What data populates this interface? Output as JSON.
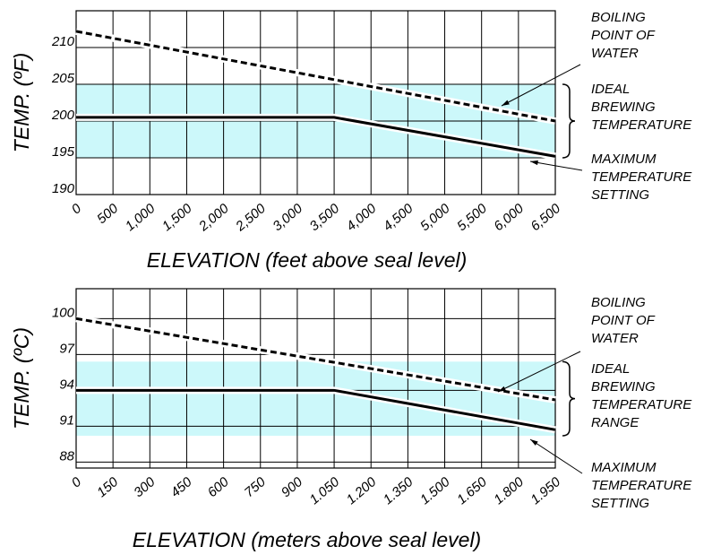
{
  "chart_data": [
    {
      "type": "line",
      "xlabel": "ELEVATION (feet above seal level)",
      "ylabel": "TEMP. (ºF)",
      "xlim": [
        0,
        6500
      ],
      "xticks": [
        0,
        500,
        {
          "value": 1000,
          "label": "1,000"
        },
        {
          "value": 1500,
          "label": "1,500"
        },
        {
          "value": 2000,
          "label": "2,000"
        },
        {
          "value": 2500,
          "label": "2,500"
        },
        {
          "value": 3000,
          "label": "3,000"
        },
        {
          "value": 3500,
          "label": "3,500"
        },
        {
          "value": 4000,
          "label": "4,000"
        },
        {
          "value": 4500,
          "label": "4,500"
        },
        {
          "value": 5000,
          "label": "5,000"
        },
        {
          "value": 5500,
          "label": "5,500"
        },
        {
          "value": 6000,
          "label": "6,000"
        },
        {
          "value": 6500,
          "label": "6,500"
        }
      ],
      "ylim": [
        190,
        215
      ],
      "yticks": [
        190,
        195,
        200,
        205,
        210
      ],
      "grid": true,
      "band": [
        195,
        205
      ],
      "band_color": "#ccf8fa",
      "series": [
        {
          "name": "BOILING POINT OF WATER",
          "color": "#000000",
          "style": "dashed",
          "x": [
            0,
            6500
          ],
          "values": [
            212.2,
            200
          ]
        },
        {
          "name": "MAXIMUM TEMPERATURE SETTING",
          "color": "#000000",
          "style": "solid",
          "x": [
            0,
            3500,
            6500
          ],
          "values": [
            200.5,
            200.5,
            195.2
          ]
        }
      ],
      "annotations": [
        {
          "lines": [
            "BOILING",
            "POINT OF",
            "WATER"
          ]
        },
        {
          "lines": [
            "IDEAL",
            "BREWING",
            "TEMPERATURE"
          ]
        },
        {
          "lines": [
            "MAXIMUM",
            "TEMPERATURE",
            "SETTING"
          ]
        }
      ]
    },
    {
      "type": "line",
      "xlabel": "ELEVATION (meters above seal level)",
      "ylabel": "TEMP. (ºC)",
      "xlim": [
        0,
        1950
      ],
      "xticks": [
        0,
        150,
        300,
        450,
        600,
        750,
        900,
        {
          "value": 1050,
          "label": "1.050"
        },
        {
          "value": 1200,
          "label": "1.200"
        },
        {
          "value": 1350,
          "label": "1.350"
        },
        {
          "value": 1500,
          "label": "1.500"
        },
        {
          "value": 1650,
          "label": "1.650"
        },
        {
          "value": 1800,
          "label": "1.800"
        },
        {
          "value": 1950,
          "label": "1.950"
        }
      ],
      "ylim": [
        87.5,
        102.5
      ],
      "yticks": [
        88,
        91,
        94,
        97,
        100
      ],
      "grid": true,
      "band": [
        90.2,
        96.4
      ],
      "band_color": "#ccf8fa",
      "series": [
        {
          "name": "BOILING POINT OF WATER",
          "color": "#000000",
          "style": "dashed",
          "x": [
            0,
            1950
          ],
          "values": [
            100,
            93.2
          ]
        },
        {
          "name": "MAXIMUM TEMPERATURE SETTING",
          "color": "#000000",
          "style": "solid",
          "x": [
            0,
            1050,
            1950
          ],
          "values": [
            94,
            94,
            90.7
          ]
        }
      ],
      "annotations": [
        {
          "lines": [
            "BOILING",
            "POINT OF",
            "WATER"
          ]
        },
        {
          "lines": [
            "IDEAL",
            "BREWING",
            "TEMPERATURE",
            "RANGE"
          ]
        },
        {
          "lines": [
            "MAXIMUM",
            "TEMPERATURE",
            "SETTING"
          ]
        }
      ]
    }
  ]
}
